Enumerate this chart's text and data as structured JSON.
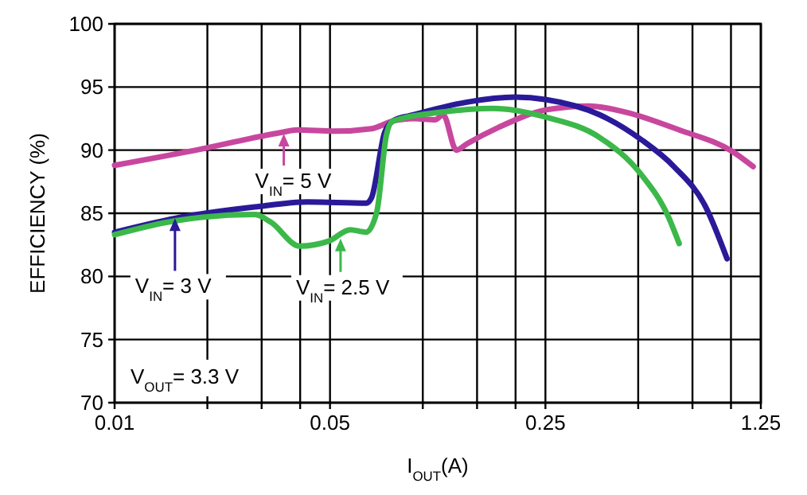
{
  "chart_data": {
    "type": "line",
    "xlabel": "I$_{OUT}$(A)",
    "ylabel": "EFFICIENCY (%)",
    "log": "x",
    "grid": true,
    "line_style": "solid",
    "marker": "none",
    "xlim": [
      0.01,
      1.25
    ],
    "ylim": [
      70,
      100
    ],
    "xticks": [
      0.01,
      {
        "value": 0.02,
        "label": null
      },
      {
        "value": 0.03,
        "label": null
      },
      {
        "value": 0.04,
        "label": null
      },
      0.05,
      {
        "value": 0.1,
        "label": null
      },
      {
        "value": 0.15,
        "label": null
      },
      {
        "value": 0.2,
        "label": null
      },
      0.25,
      {
        "value": 0.5,
        "label": null
      },
      {
        "value": 0.75,
        "label": null
      },
      {
        "value": 1,
        "label": null
      },
      1.25
    ],
    "yticks": [
      70,
      75,
      80,
      85,
      90,
      95,
      100
    ],
    "series": [
      {
        "color": "#c8479e",
        "x": [
          0.01,
          0.0192,
          0.0347,
          0.0391,
          0.0516,
          0.0681,
          0.0798,
          0.0935,
          0.1096,
          0.1164,
          0.1285,
          0.139,
          0.176,
          0.252,
          0.346,
          0.457,
          0.679,
          1.01,
          1.18
        ],
        "values": [
          88.8,
          90.1,
          91.4,
          91.6,
          91.5,
          91.7,
          92.3,
          92.5,
          92.4,
          92.8,
          90.0,
          90.5,
          91.8,
          93.2,
          93.5,
          93.0,
          91.6,
          89.9,
          88.7
        ]
      },
      {
        "color": "#2a1a99",
        "x": [
          0.01,
          0.0157,
          0.0285,
          0.0423,
          0.0655,
          0.0681,
          0.0752,
          0.0798,
          0.0935,
          0.139,
          0.199,
          0.252,
          0.375,
          0.514,
          0.653,
          0.828,
          0.971
        ],
        "values": [
          83.5,
          84.6,
          85.5,
          85.9,
          85.8,
          86.2,
          91.4,
          92.3,
          92.8,
          93.8,
          94.2,
          94.0,
          92.8,
          90.8,
          88.7,
          85.5,
          81.4
        ]
      },
      {
        "color": "#3cb84a",
        "x": [
          0.01,
          0.0157,
          0.0285,
          0.0321,
          0.0399,
          0.0496,
          0.0581,
          0.0655,
          0.0709,
          0.0762,
          0.0798,
          0.114,
          0.169,
          0.252,
          0.375,
          0.514,
          0.627,
          0.679
        ],
        "values": [
          83.3,
          84.4,
          84.9,
          84.3,
          82.4,
          82.8,
          83.7,
          83.5,
          85.1,
          91.2,
          92.3,
          93.0,
          93.3,
          92.6,
          91.0,
          88.0,
          84.7,
          82.6
        ]
      }
    ],
    "annotations": [
      {
        "text": "V$_{IN}$= 5 V",
        "x": 0.0354,
        "y": 91.3
      },
      {
        "text": "V$_{IN}$= 3 V",
        "x": 0.0157,
        "y": 84.6
      },
      {
        "text": "V$_{IN}$= 2.5 V",
        "x": 0.0541,
        "y": 83.0
      },
      "V$_{OUT}$= 3.3 V"
    ]
  }
}
